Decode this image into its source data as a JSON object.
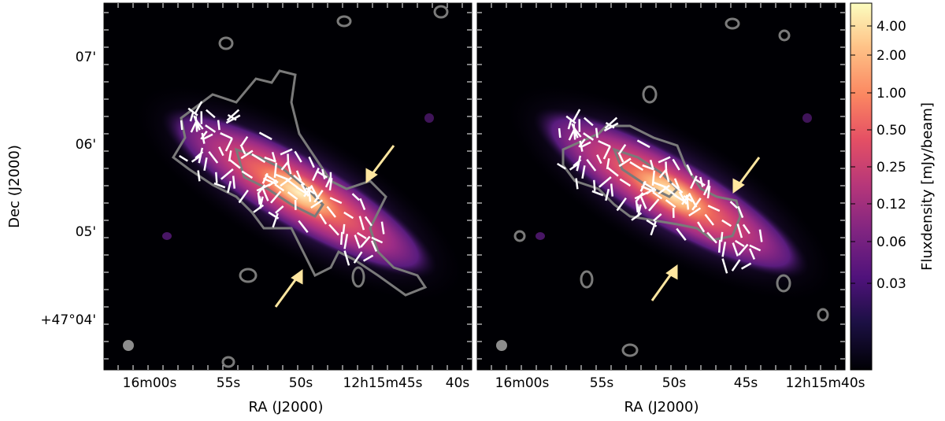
{
  "chart_data": [
    {
      "type": "heatmap",
      "panel": "left",
      "xlabel": "RA (J2000)",
      "ylabel": "Dec (J2000)",
      "x_ticks": [
        "16m00s",
        "55s",
        "50s",
        "12h15m45s",
        "40s"
      ],
      "y_ticks": [
        "+47°04'",
        "05'",
        "06'",
        "07'"
      ],
      "annotations": [
        "arrow-upper-right",
        "arrow-lower-left",
        "beam-marker",
        "polarization-vectors",
        "contours"
      ]
    },
    {
      "type": "heatmap",
      "panel": "right",
      "xlabel": "RA (J2000)",
      "ylabel": "",
      "x_ticks": [
        "16m00s",
        "55s",
        "50s",
        "45s",
        "12h15m40s"
      ],
      "y_ticks": [],
      "annotations": [
        "arrow-upper-right",
        "arrow-lower-left",
        "beam-marker",
        "polarization-vectors",
        "contours"
      ]
    }
  ],
  "colorbar": {
    "label": "Fluxdensity [mJy/beam]",
    "ticks": [
      "4.00",
      "2.00",
      "1.00",
      "0.50",
      "0.25",
      "0.12",
      "0.06",
      "0.03"
    ],
    "colormap": "magma",
    "scale": "log"
  },
  "colors": {
    "contour": "#7a7a7a",
    "vector": "#ffffff",
    "arrow": "#ffe6a0",
    "background": "#000004"
  }
}
